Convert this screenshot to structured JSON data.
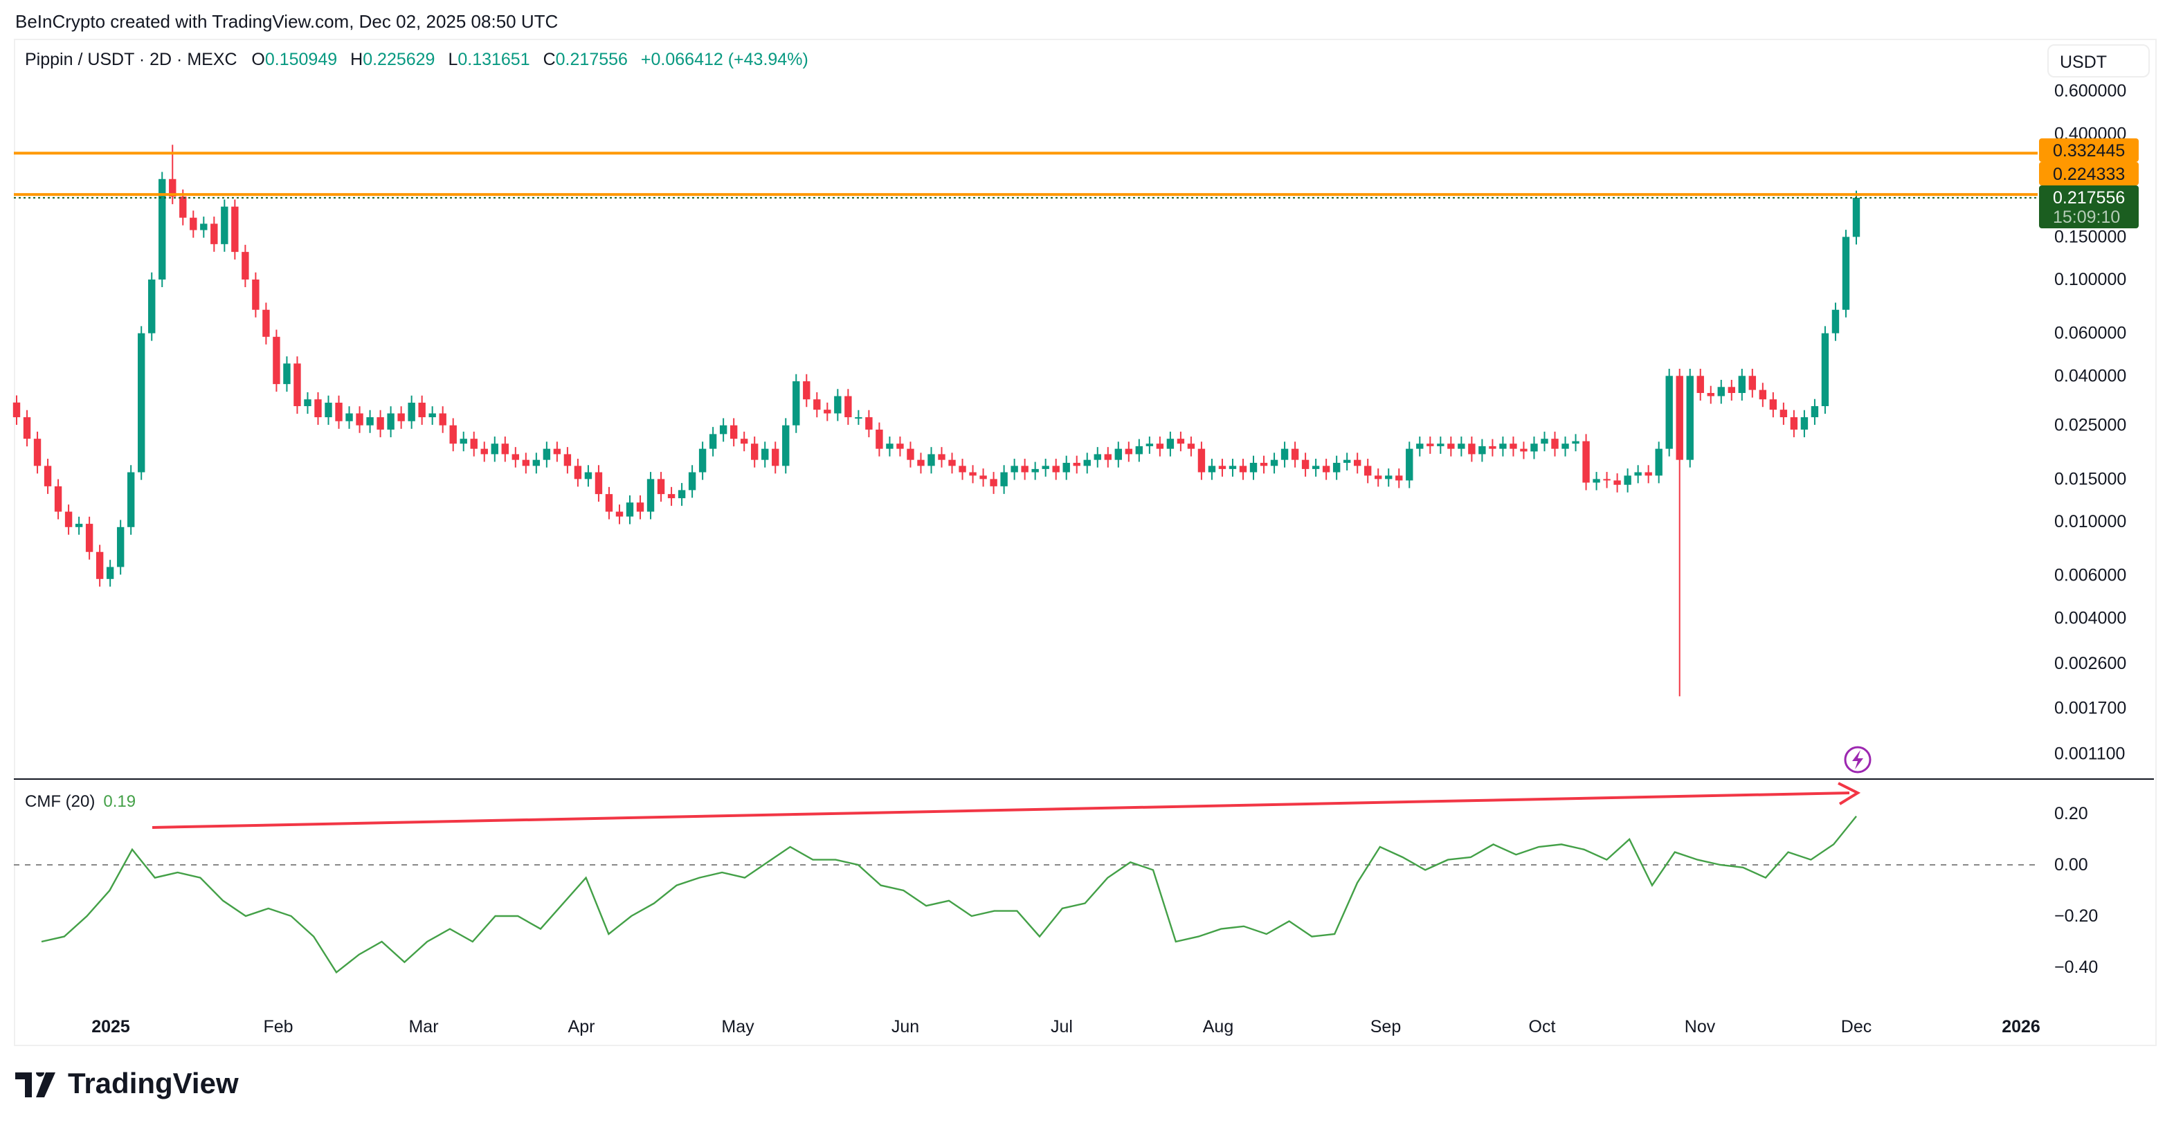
{
  "credit": "BeInCrypto created with TradingView.com, Dec 02, 2025 08:50 UTC",
  "legend": {
    "symbol": "Pippin / USDT · 2D · MEXC",
    "o_label": "O",
    "o": "0.150949",
    "h_label": "H",
    "h": "0.225629",
    "l_label": "L",
    "l": "0.131651",
    "c_label": "C",
    "c": "0.217556",
    "change": "+0.066412 (+43.94%)"
  },
  "currency_button": "USDT",
  "cmf_label": {
    "name": "CMF (20)",
    "value": "0.19"
  },
  "logo_text": "TradingView",
  "colors": {
    "up": "#089981",
    "down": "#f23645",
    "resistance": "#ff9800",
    "last_price": "#1b5e20",
    "cmf": "#43a047",
    "trendline": "#f23645",
    "alert": "#9c27b0"
  },
  "icons": {
    "alert": "lightning-icon",
    "logo": "tradingview-logo-icon"
  },
  "chart_data": [
    {
      "type": "candlestick",
      "interval": "2D",
      "scale": "log",
      "y_ticks": [
        "0.600000",
        "0.400000",
        "0.150000",
        "0.100000",
        "0.060000",
        "0.040000",
        "0.025000",
        "0.015000",
        "0.010000",
        "0.006000",
        "0.004000",
        "0.002600",
        "0.001700",
        "0.001100"
      ],
      "x_ticks": [
        "2025",
        "Feb",
        "Mar",
        "Apr",
        "May",
        "Jun",
        "Jul",
        "Aug",
        "Sep",
        "Oct",
        "Nov",
        "Dec",
        "2026"
      ],
      "horizontal_lines": [
        {
          "value": 0.332445,
          "label": "0.332445"
        },
        {
          "value": 0.224333,
          "label": "0.224333"
        }
      ],
      "last_price": {
        "value": 0.217556,
        "label": "0.217556",
        "countdown": "15:09:10"
      },
      "closes": [
        0.027,
        0.022,
        0.017,
        0.014,
        0.011,
        0.0095,
        0.0098,
        0.0075,
        0.0058,
        0.0065,
        0.0095,
        0.016,
        0.06,
        0.1,
        0.26,
        0.22,
        0.18,
        0.16,
        0.17,
        0.14,
        0.2,
        0.13,
        0.1,
        0.075,
        0.058,
        0.037,
        0.045,
        0.03,
        0.032,
        0.027,
        0.031,
        0.026,
        0.028,
        0.025,
        0.027,
        0.024,
        0.028,
        0.026,
        0.031,
        0.027,
        0.028,
        0.025,
        0.021,
        0.022,
        0.02,
        0.019,
        0.021,
        0.019,
        0.018,
        0.017,
        0.018,
        0.02,
        0.019,
        0.017,
        0.015,
        0.016,
        0.013,
        0.011,
        0.0105,
        0.012,
        0.011,
        0.015,
        0.013,
        0.0125,
        0.0135,
        0.016,
        0.02,
        0.023,
        0.025,
        0.022,
        0.021,
        0.018,
        0.02,
        0.017,
        0.025,
        0.038,
        0.032,
        0.029,
        0.028,
        0.033,
        0.027,
        0.027,
        0.024,
        0.02,
        0.021,
        0.02,
        0.018,
        0.017,
        0.019,
        0.018,
        0.017,
        0.016,
        0.0155,
        0.015,
        0.014,
        0.016,
        0.017,
        0.016,
        0.0165,
        0.017,
        0.016,
        0.0175,
        0.017,
        0.018,
        0.019,
        0.018,
        0.02,
        0.019,
        0.0205,
        0.021,
        0.02,
        0.022,
        0.021,
        0.02,
        0.016,
        0.017,
        0.0165,
        0.017,
        0.016,
        0.0175,
        0.017,
        0.018,
        0.02,
        0.018,
        0.0165,
        0.017,
        0.016,
        0.0175,
        0.018,
        0.017,
        0.0155,
        0.015,
        0.0155,
        0.0148,
        0.02,
        0.021,
        0.0205,
        0.021,
        0.02,
        0.021,
        0.019,
        0.0205,
        0.02,
        0.021,
        0.02,
        0.0195,
        0.021,
        0.022,
        0.02,
        0.021,
        0.0215,
        0.0145,
        0.015,
        0.0148,
        0.0142,
        0.0155,
        0.016,
        0.0155,
        0.02,
        0.04,
        0.018,
        0.04,
        0.034,
        0.033,
        0.036,
        0.034,
        0.04,
        0.035,
        0.032,
        0.029,
        0.027,
        0.024,
        0.027,
        0.03,
        0.06,
        0.075,
        0.15,
        0.217556
      ],
      "notable_wicks": [
        {
          "month": "Jan",
          "high": 0.36
        },
        {
          "month": "Oct",
          "low": 0.0019
        }
      ]
    },
    {
      "type": "line",
      "name": "CMF (20)",
      "y_ticks": [
        "0.20",
        "0.00",
        "−0.20",
        "−0.40"
      ],
      "zero_line": 0,
      "values": [
        -0.3,
        -0.28,
        -0.2,
        -0.1,
        0.06,
        -0.05,
        -0.03,
        -0.05,
        -0.14,
        -0.2,
        -0.17,
        -0.2,
        -0.28,
        -0.42,
        -0.35,
        -0.3,
        -0.38,
        -0.3,
        -0.25,
        -0.3,
        -0.2,
        -0.2,
        -0.25,
        -0.15,
        -0.05,
        -0.27,
        -0.2,
        -0.15,
        -0.08,
        -0.05,
        -0.03,
        -0.05,
        0.01,
        0.07,
        0.02,
        0.02,
        0.0,
        -0.08,
        -0.1,
        -0.16,
        -0.14,
        -0.2,
        -0.18,
        -0.18,
        -0.28,
        -0.17,
        -0.15,
        -0.05,
        0.01,
        -0.02,
        -0.3,
        -0.28,
        -0.25,
        -0.24,
        -0.27,
        -0.22,
        -0.28,
        -0.27,
        -0.07,
        0.07,
        0.03,
        -0.02,
        0.02,
        0.03,
        0.08,
        0.04,
        0.07,
        0.08,
        0.06,
        0.02,
        0.1,
        -0.08,
        0.05,
        0.02,
        0.0,
        -0.01,
        -0.05,
        0.05,
        0.02,
        0.08,
        0.19
      ],
      "trendline": "rising"
    }
  ]
}
